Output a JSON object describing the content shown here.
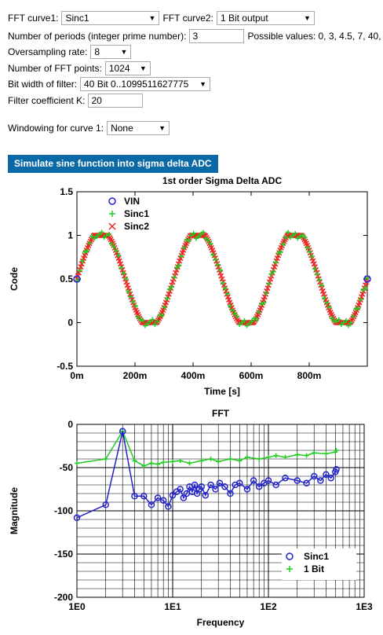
{
  "controls": {
    "fft_curve1_label": "FFT curve1:",
    "fft_curve1_value": "Sinc1",
    "fft_curve2_label": "FFT curve2:",
    "fft_curve2_value": "1 Bit output",
    "periods_label": "Number of periods (integer prime number):",
    "periods_value": "3",
    "periods_hint": "Possible values: 0, 3, 4.5, 7, 40,",
    "oversampling_label": "Oversampling rate:",
    "oversampling_value": "8",
    "fft_points_label": "Number of FFT points:",
    "fft_points_value": "1024",
    "bitwidth_label": "Bit width of filter:",
    "bitwidth_value": "40 Bit 0..1099511627775",
    "coef_label": "Filter coefficient K:",
    "coef_value": "20",
    "window_label": "Windowing for curve 1:",
    "window_value": "None",
    "simulate_label": "Simulate sine function into sigma delta ADC"
  },
  "icons": {
    "dropdown": "chevron-down-icon"
  },
  "chart_data": [
    {
      "type": "scatter",
      "title": "1st order Sigma Delta ADC",
      "xlabel": "Time [s]",
      "ylabel": "Code",
      "xlim": [
        0,
        1
      ],
      "ylim": [
        -0.5,
        1.5
      ],
      "xticks": [
        0,
        0.2,
        0.4,
        0.6,
        0.8
      ],
      "xtick_labels": [
        "0m",
        "200m",
        "400m",
        "600m",
        "800m"
      ],
      "yticks": [
        -0.5,
        0,
        0.5,
        1,
        1.5
      ],
      "ytick_labels": [
        "-0.5",
        "0",
        "0.5",
        "1",
        "1.5"
      ],
      "grid": false,
      "legend": "top-left",
      "series": [
        {
          "name": "VIN",
          "marker": "circle",
          "color": "#2222dd",
          "x": [
            0,
            1
          ],
          "y": [
            0.5,
            0.5
          ]
        },
        {
          "name": "Sinc1",
          "marker": "plus",
          "color": "#22cc22",
          "function": "0.5+0.5*sin(2*pi*3*t)",
          "periods": 3,
          "clip": [
            0,
            1
          ]
        },
        {
          "name": "Sinc2",
          "marker": "x",
          "color": "#ee2222",
          "function": "0.5+0.5*sin(2*pi*3*t)",
          "periods": 3,
          "clip": [
            0,
            1
          ]
        }
      ]
    },
    {
      "type": "line",
      "title": "FFT",
      "xlabel": "Frequency",
      "ylabel": "Magnitude",
      "xscale": "log",
      "xlim": [
        1,
        1000
      ],
      "ylim": [
        -200,
        0
      ],
      "xticks": [
        1,
        10,
        100,
        1000
      ],
      "xtick_labels": [
        "1E0",
        "1E1",
        "1E2",
        "1E3"
      ],
      "yticks": [
        0,
        -50,
        -100,
        -150,
        -200
      ],
      "ytick_labels": [
        "0",
        "-50",
        "-100",
        "-150",
        "-200"
      ],
      "grid": true,
      "legend": "bottom-right",
      "series": [
        {
          "name": "Sinc1",
          "marker": "circle",
          "color": "#2222cc",
          "x": [
            1,
            2,
            3,
            4,
            5,
            6,
            7,
            8,
            9,
            10,
            11,
            12,
            13,
            14,
            15,
            16,
            17,
            18,
            19,
            20,
            22,
            25,
            28,
            31,
            35,
            40,
            45,
            50,
            60,
            70,
            80,
            90,
            100,
            120,
            150,
            200,
            250,
            300,
            350,
            400,
            450,
            500,
            512
          ],
          "y": [
            -108,
            -93,
            -8,
            -83,
            -83,
            -93,
            -85,
            -88,
            -95,
            -82,
            -78,
            -75,
            -85,
            -80,
            -72,
            -78,
            -70,
            -80,
            -75,
            -72,
            -82,
            -70,
            -75,
            -68,
            -72,
            -80,
            -70,
            -68,
            -75,
            -65,
            -72,
            -68,
            -65,
            -70,
            -62,
            -65,
            -68,
            -60,
            -65,
            -58,
            -62,
            -55,
            -52
          ]
        },
        {
          "name": "1 Bit",
          "marker": "plus",
          "color": "#22cc22",
          "x": [
            1,
            2,
            3,
            4,
            5,
            6,
            7,
            8,
            10,
            12,
            15,
            20,
            25,
            30,
            40,
            50,
            60,
            80,
            100,
            120,
            150,
            200,
            250,
            300,
            400,
            500,
            512
          ],
          "y": [
            -45,
            -40,
            -8,
            -42,
            -48,
            -45,
            -46,
            -44,
            -43,
            -42,
            -45,
            -42,
            -40,
            -43,
            -40,
            -42,
            -38,
            -40,
            -38,
            -36,
            -38,
            -35,
            -36,
            -33,
            -34,
            -32,
            -30
          ]
        }
      ]
    }
  ]
}
